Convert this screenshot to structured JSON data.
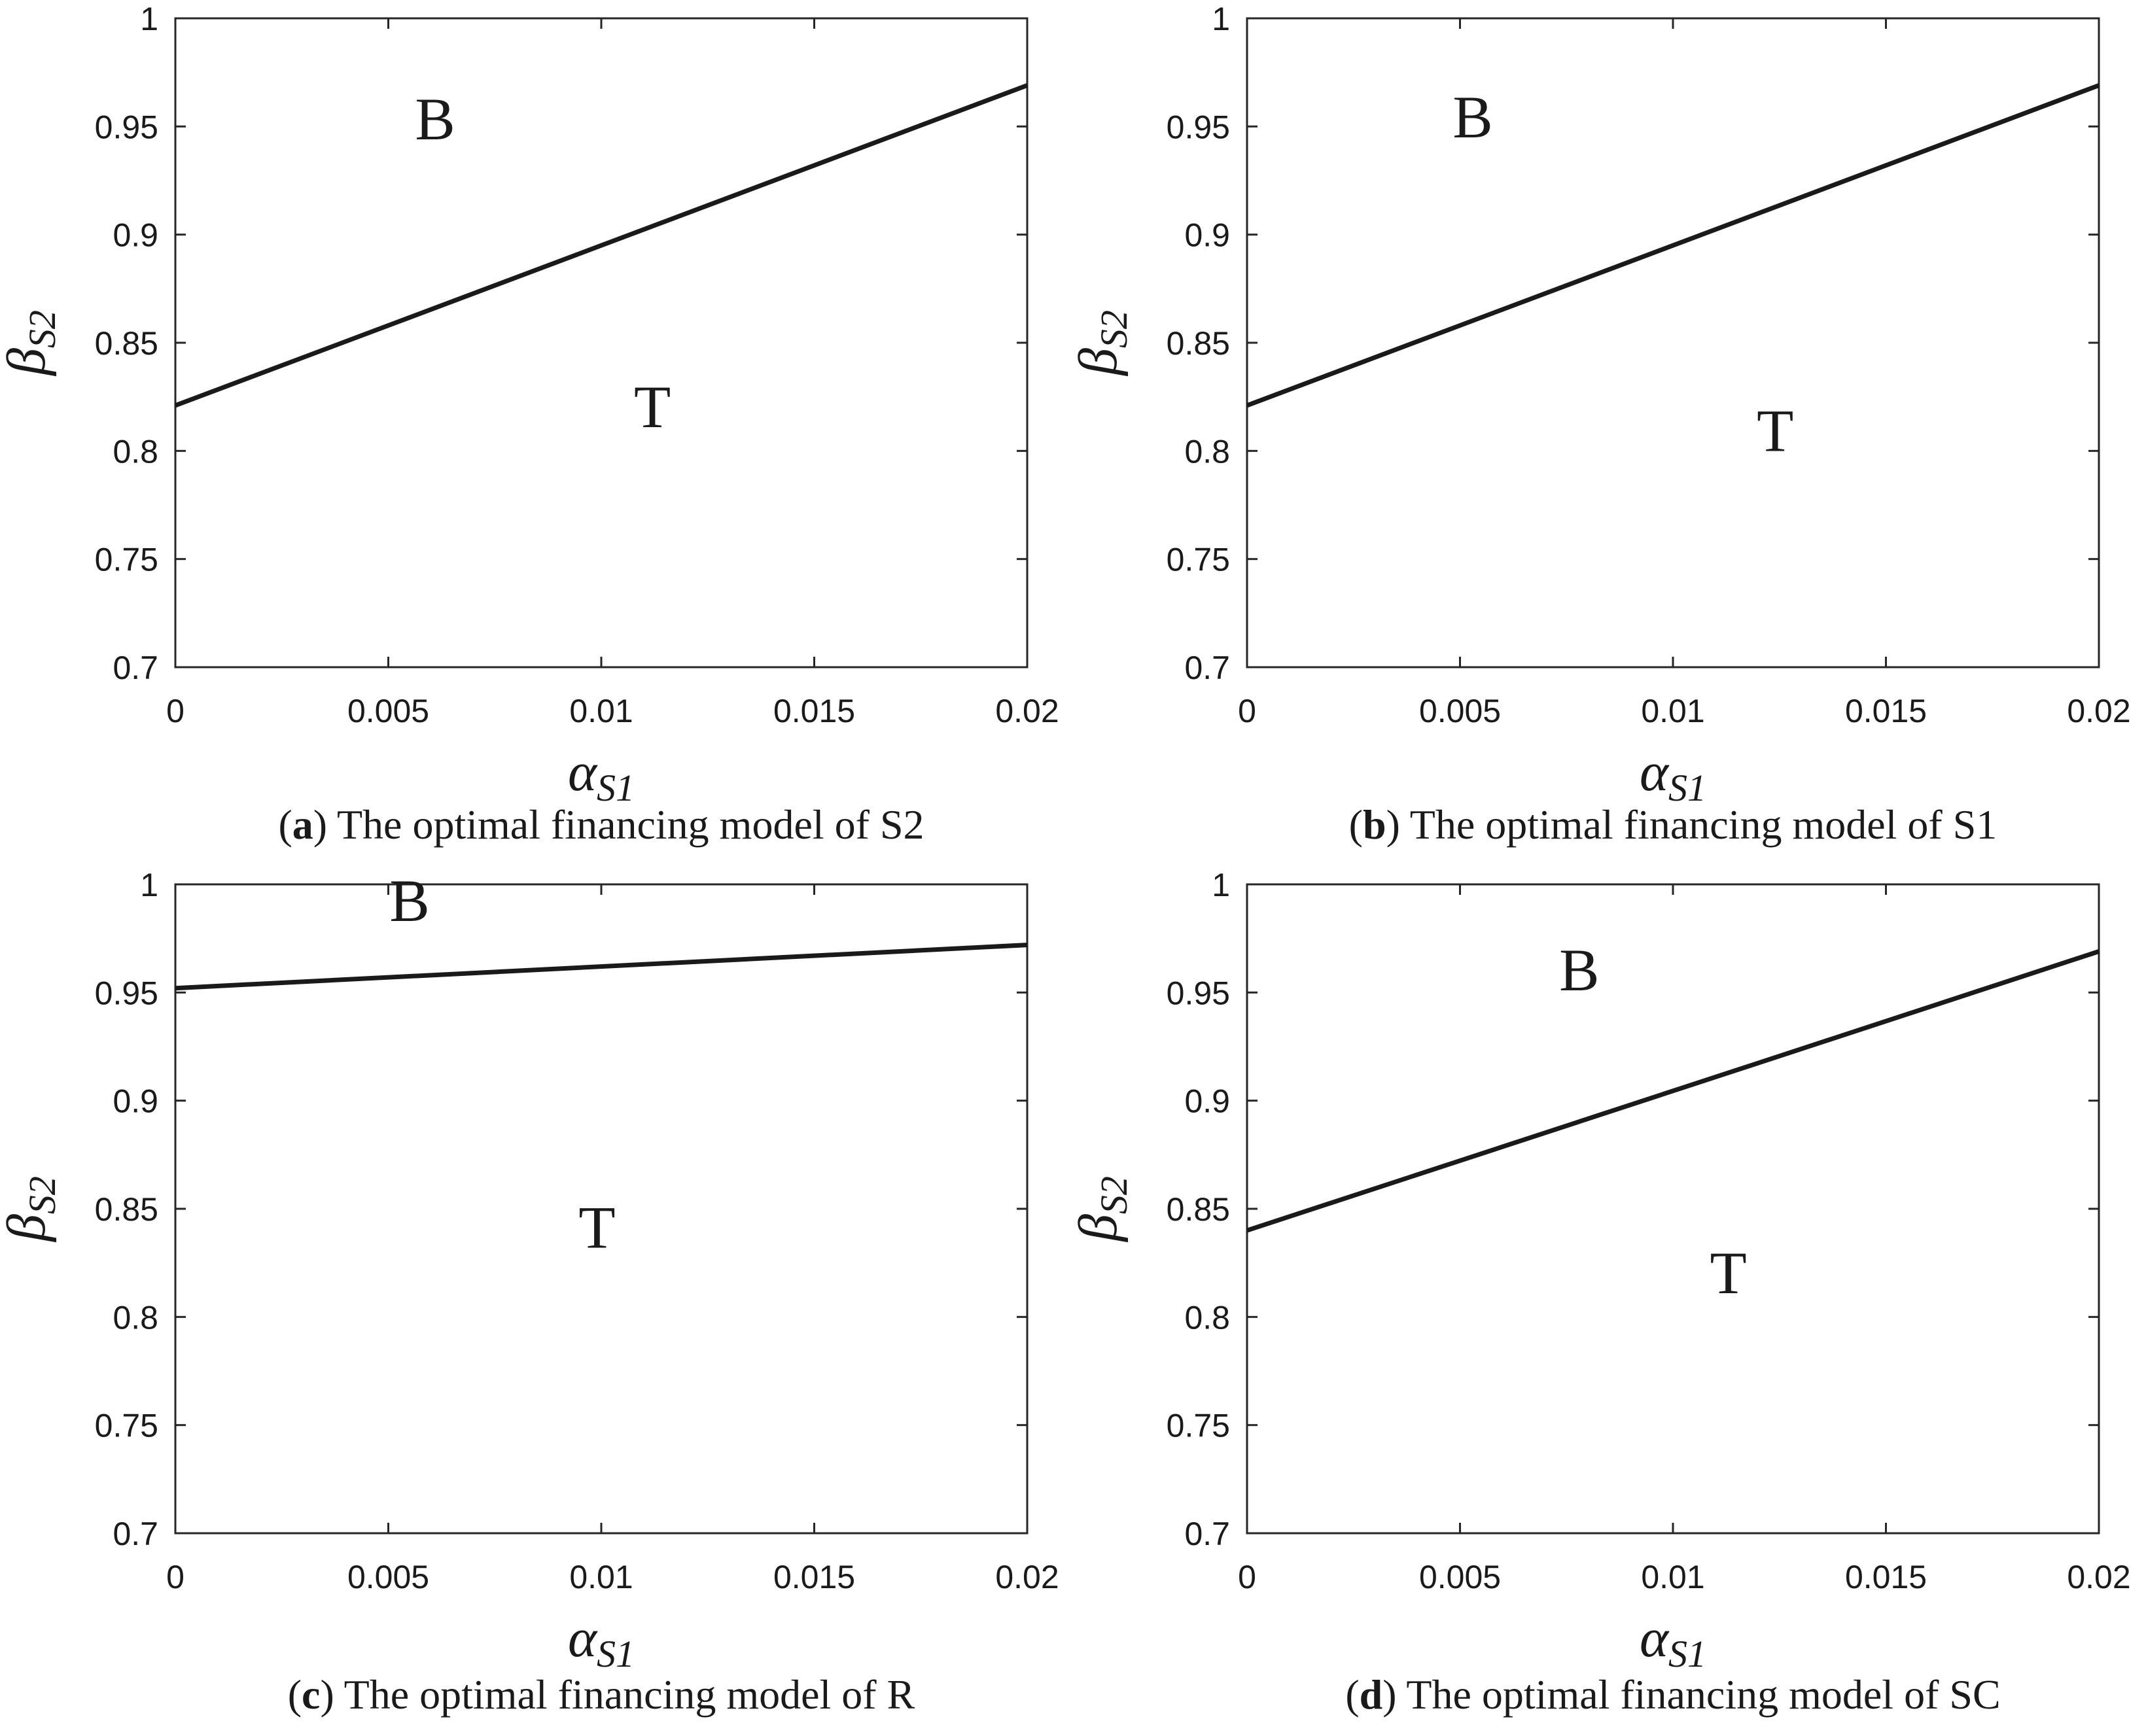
{
  "chart_data": [
    {
      "panel": "a",
      "type": "line",
      "caption": {
        "letter": "a",
        "text": "The optimal financing model of S2"
      },
      "xlabel": {
        "symbol": "α",
        "subscript": "S1"
      },
      "ylabel": {
        "symbol": "β",
        "subscript": "S2"
      },
      "xlim": [
        0,
        0.02
      ],
      "ylim": [
        0.7,
        1
      ],
      "xticks": [
        0,
        0.005,
        0.01,
        0.015,
        0.02
      ],
      "yticks": [
        0.7,
        0.75,
        0.8,
        0.85,
        0.9,
        0.95,
        1
      ],
      "xtick_labels": [
        "0",
        "0.005",
        "0.01",
        "0.015",
        "0.02"
      ],
      "ytick_labels": [
        "0.7",
        "0.75",
        "0.8",
        "0.85",
        "0.9",
        "0.95",
        "1"
      ],
      "series": [
        {
          "x": [
            0,
            0.02
          ],
          "y": [
            0.821,
            0.969
          ]
        }
      ],
      "regions": [
        {
          "label": "B",
          "x": 0.0061,
          "y": 0.944
        },
        {
          "label": "T",
          "x": 0.0112,
          "y": 0.811
        }
      ],
      "grid": false
    },
    {
      "panel": "b",
      "type": "line",
      "caption": {
        "letter": "b",
        "text": "The optimal financing model of S1"
      },
      "xlabel": {
        "symbol": "α",
        "subscript": "S1"
      },
      "ylabel": {
        "symbol": "β",
        "subscript": "S2"
      },
      "xlim": [
        0,
        0.02
      ],
      "ylim": [
        0.7,
        1
      ],
      "xticks": [
        0,
        0.005,
        0.01,
        0.015,
        0.02
      ],
      "yticks": [
        0.7,
        0.75,
        0.8,
        0.85,
        0.9,
        0.95,
        1
      ],
      "xtick_labels": [
        "0",
        "0.005",
        "0.01",
        "0.015",
        "0.02"
      ],
      "ytick_labels": [
        "0.7",
        "0.75",
        "0.8",
        "0.85",
        "0.9",
        "0.95",
        "1"
      ],
      "series": [
        {
          "x": [
            0,
            0.02
          ],
          "y": [
            0.821,
            0.969
          ]
        }
      ],
      "regions": [
        {
          "label": "B",
          "x": 0.0053,
          "y": 0.945
        },
        {
          "label": "T",
          "x": 0.0124,
          "y": 0.8
        }
      ],
      "grid": false
    },
    {
      "panel": "c",
      "type": "line",
      "caption": {
        "letter": "c",
        "text": "The optimal financing model of R"
      },
      "xlabel": {
        "symbol": "α",
        "subscript": "S1"
      },
      "ylabel": {
        "symbol": "β",
        "subscript": "S2"
      },
      "xlim": [
        0,
        0.02
      ],
      "ylim": [
        0.7,
        1
      ],
      "xticks": [
        0,
        0.005,
        0.01,
        0.015,
        0.02
      ],
      "yticks": [
        0.7,
        0.75,
        0.8,
        0.85,
        0.9,
        0.95,
        1
      ],
      "xtick_labels": [
        "0",
        "0.005",
        "0.01",
        "0.015",
        "0.02"
      ],
      "ytick_labels": [
        "0.7",
        "0.75",
        "0.8",
        "0.85",
        "0.9",
        "0.95",
        "1"
      ],
      "series": [
        {
          "x": [
            0,
            0.02
          ],
          "y": [
            0.952,
            0.972
          ]
        }
      ],
      "regions": [
        {
          "label": "B",
          "x": 0.0055,
          "y": 0.983
        },
        {
          "label": "T",
          "x": 0.0099,
          "y": 0.832
        }
      ],
      "grid": false
    },
    {
      "panel": "d",
      "type": "line",
      "caption": {
        "letter": "d",
        "text": "The optimal financing model of SC"
      },
      "xlabel": {
        "symbol": "α",
        "subscript": "S1"
      },
      "ylabel": {
        "symbol": "β",
        "subscript": "S2"
      },
      "xlim": [
        0,
        0.02
      ],
      "ylim": [
        0.7,
        1
      ],
      "xticks": [
        0,
        0.005,
        0.01,
        0.015,
        0.02
      ],
      "yticks": [
        0.7,
        0.75,
        0.8,
        0.85,
        0.9,
        0.95,
        1
      ],
      "xtick_labels": [
        "0",
        "0.005",
        "0.01",
        "0.015",
        "0.02"
      ],
      "ytick_labels": [
        "0.7",
        "0.75",
        "0.8",
        "0.85",
        "0.9",
        "0.95",
        "1"
      ],
      "series": [
        {
          "x": [
            0,
            0.02
          ],
          "y": [
            0.84,
            0.969
          ]
        }
      ],
      "regions": [
        {
          "label": "B",
          "x": 0.0078,
          "y": 0.951
        },
        {
          "label": "T",
          "x": 0.0113,
          "y": 0.811
        }
      ],
      "grid": false
    }
  ]
}
